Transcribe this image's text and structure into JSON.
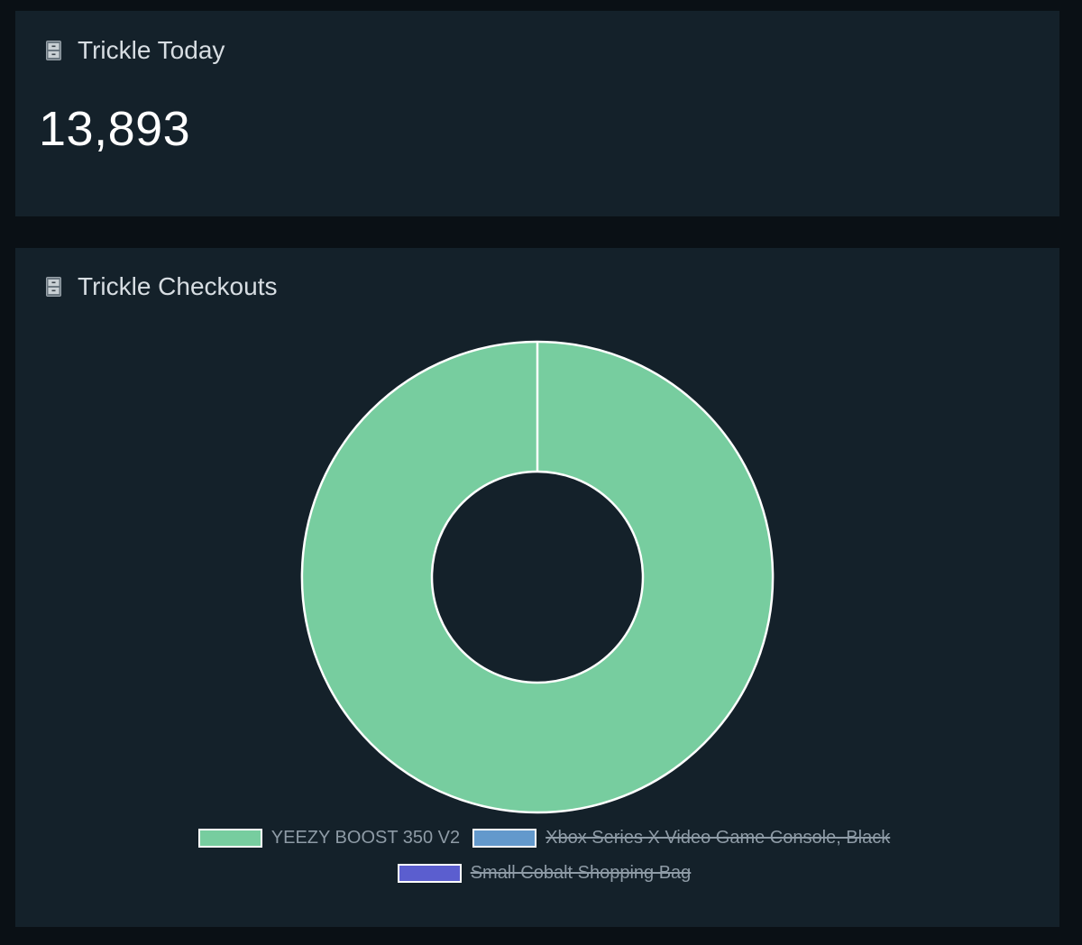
{
  "cards": {
    "today": {
      "title": "Trickle Today",
      "icon": "file-cabinet-icon",
      "value": "13,893"
    },
    "checkouts": {
      "title": "Trickle Checkouts",
      "icon": "file-cabinet-icon"
    }
  },
  "chart_data": {
    "type": "pie",
    "variant": "doughnut",
    "legend_position": "bottom",
    "series": [
      {
        "name": "YEEZY BOOST 350 V2",
        "color": "#77cd9f",
        "value": 1,
        "hidden": false
      },
      {
        "name": "Xbox Series X Video Game Console, Black",
        "color": "#6399cc",
        "value": 0,
        "hidden": true
      },
      {
        "name": "Small Cobalt Shopping Bag",
        "color": "#5b5ecf",
        "value": 0,
        "hidden": true
      }
    ]
  },
  "colors": {
    "page_bg": "#0a1015",
    "card_bg": "#14212a",
    "slice_border": "#ffffff"
  }
}
